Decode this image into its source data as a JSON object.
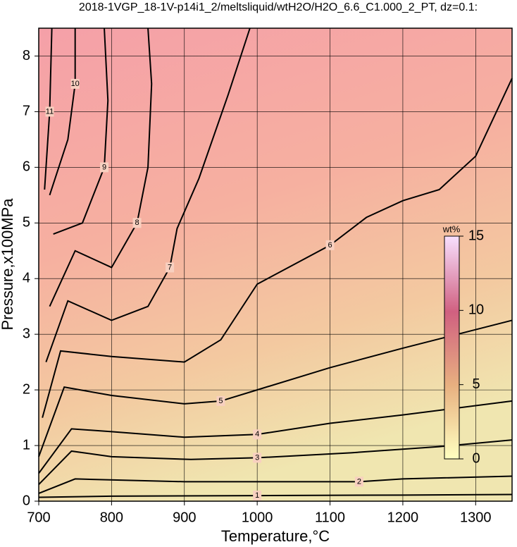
{
  "chart_data": {
    "type": "contour",
    "title": "2018-1VGP_18-1V-p14i1_2/meltsliquid/wtH2O/H2O_6.6_C1.000_2_PT, dz=0.1:",
    "xlabel": "Temperature,°C",
    "ylabel": "Pressure,x100MPa",
    "xlim": [
      700,
      1350
    ],
    "ylim": [
      0,
      8.5
    ],
    "xticks": [
      700,
      800,
      900,
      1000,
      1100,
      1200,
      1300
    ],
    "yticks": [
      0,
      1,
      2,
      3,
      4,
      5,
      6,
      7,
      8
    ],
    "grid": true,
    "colorbar": {
      "label": "wt%",
      "lim": [
        0,
        15
      ],
      "ticks": [
        0,
        5,
        10,
        15
      ]
    },
    "contours": [
      {
        "level": 1,
        "x": [
          700,
          800,
          1000,
          1200,
          1350
        ],
        "y": [
          0.07,
          0.09,
          0.1,
          0.11,
          0.12
        ]
      },
      {
        "level": 2,
        "x": [
          700,
          750,
          900,
          1140,
          1200,
          1350
        ],
        "y": [
          0.14,
          0.4,
          0.35,
          0.35,
          0.4,
          0.45
        ]
      },
      {
        "level": 3,
        "x": [
          700,
          745,
          800,
          909,
          1000,
          1129,
          1250,
          1350
        ],
        "y": [
          0.3,
          0.9,
          0.8,
          0.75,
          0.78,
          0.87,
          0.98,
          1.1
        ]
      },
      {
        "level": 4,
        "x": [
          700,
          745,
          800,
          900,
          1000,
          1100,
          1200,
          1350
        ],
        "y": [
          0.5,
          1.3,
          1.25,
          1.15,
          1.2,
          1.4,
          1.55,
          1.8
        ]
      },
      {
        "level": 5,
        "x": [
          700,
          735,
          800,
          900,
          950,
          1000,
          1100,
          1200,
          1350
        ],
        "y": [
          0.8,
          2.05,
          1.9,
          1.75,
          1.8,
          2.0,
          2.4,
          2.75,
          3.25
        ]
      },
      {
        "level": 6,
        "x": [
          705,
          730,
          800,
          900,
          950,
          1000,
          1100,
          1150,
          1200,
          1250,
          1300,
          1350
        ],
        "y": [
          1.5,
          2.7,
          2.6,
          2.5,
          2.9,
          3.9,
          4.6,
          5.1,
          5.4,
          5.6,
          6.2,
          7.6
        ]
      },
      {
        "level": 7,
        "x": [
          710,
          740,
          800,
          850,
          880,
          890,
          920,
          960,
          990
        ],
        "y": [
          2.5,
          3.6,
          3.25,
          3.5,
          4.2,
          4.9,
          5.8,
          7.3,
          8.5
        ]
      },
      {
        "level": 8,
        "x": [
          715,
          750,
          800,
          835,
          850,
          855,
          850
        ],
        "y": [
          3.5,
          4.5,
          4.2,
          5.0,
          6.0,
          7.5,
          8.5
        ]
      },
      {
        "level": 9,
        "x": [
          720,
          760,
          790,
          795,
          790
        ],
        "y": [
          4.8,
          5.0,
          6.0,
          7.2,
          8.5
        ]
      },
      {
        "level": 10,
        "x": [
          715,
          740,
          750,
          750
        ],
        "y": [
          5.5,
          6.5,
          7.5,
          8.5
        ]
      },
      {
        "level": 11,
        "x": [
          708,
          715,
          718
        ],
        "y": [
          5.6,
          7.0,
          8.5
        ]
      }
    ]
  }
}
